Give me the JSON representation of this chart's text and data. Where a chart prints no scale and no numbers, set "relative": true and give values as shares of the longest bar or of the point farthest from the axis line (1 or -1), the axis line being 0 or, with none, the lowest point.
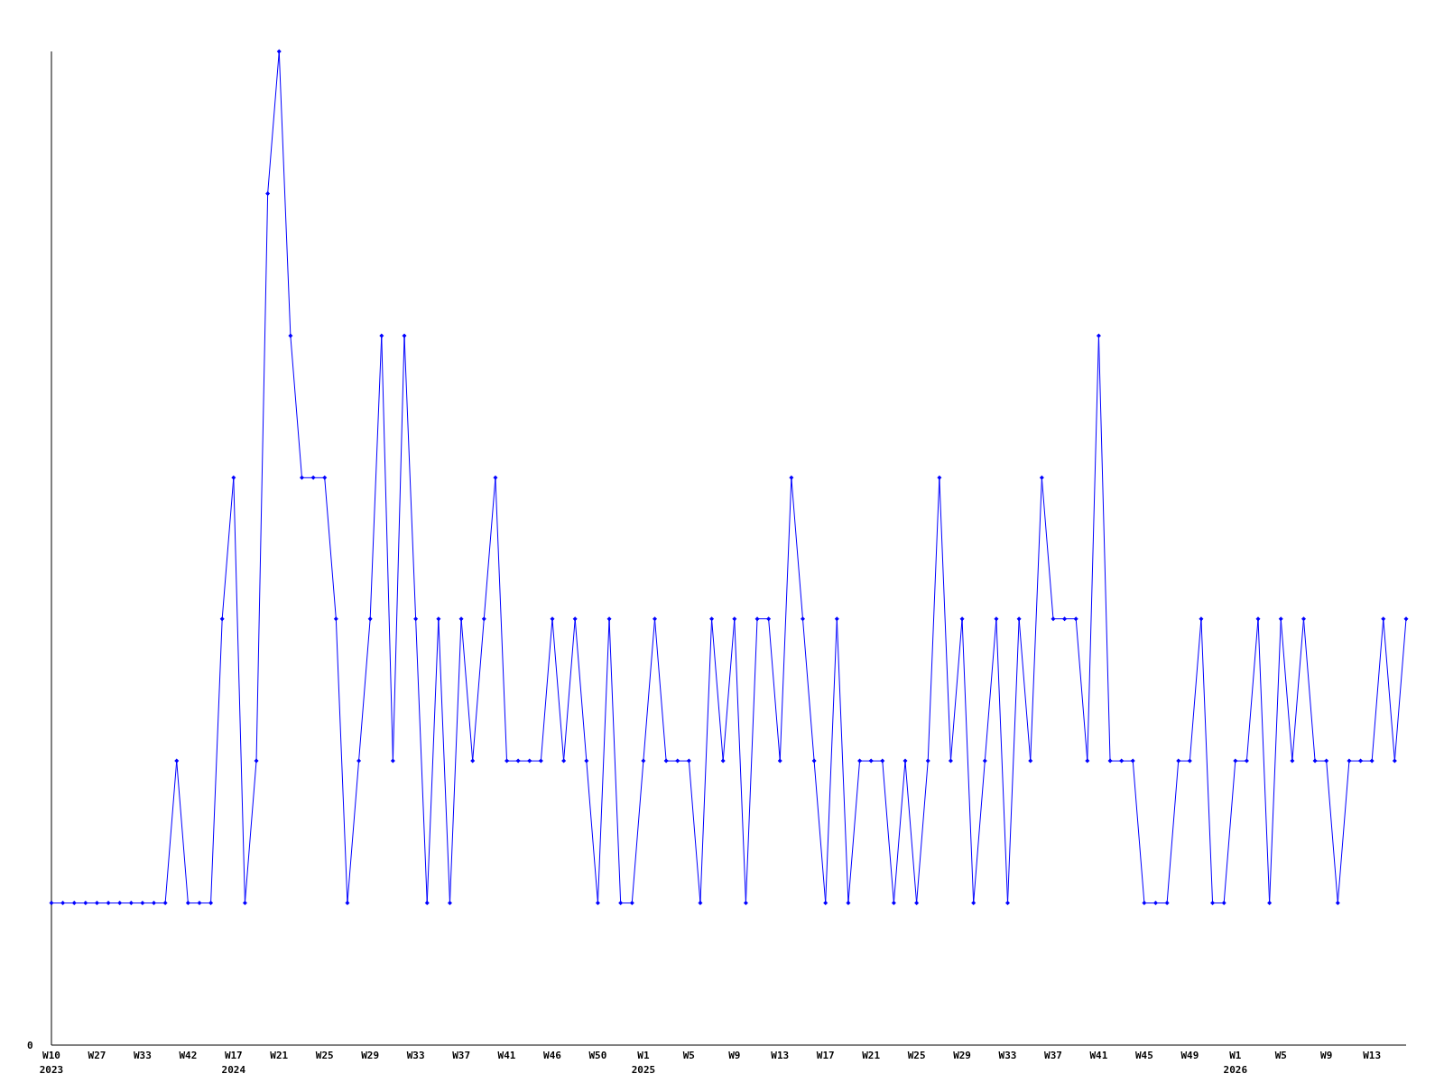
{
  "chart_data": {
    "type": "line",
    "relative": true,
    "marker": "diamond",
    "line_style": "solid",
    "annotations": [
      "0"
    ],
    "categories": [
      "W10\n2023",
      null,
      null,
      null,
      "W27",
      null,
      null,
      null,
      "W33",
      null,
      null,
      null,
      "W42",
      null,
      null,
      null,
      "W17\n2024",
      null,
      null,
      null,
      "W21",
      null,
      null,
      null,
      "W25",
      null,
      null,
      null,
      "W29",
      null,
      null,
      null,
      "W33",
      null,
      null,
      null,
      "W37",
      null,
      null,
      null,
      "W41",
      null,
      null,
      null,
      "W46",
      null,
      null,
      null,
      "W50",
      null,
      null,
      null,
      "W1\n2025",
      null,
      null,
      null,
      "W5",
      null,
      null,
      null,
      "W9",
      null,
      null,
      null,
      "W13",
      null,
      null,
      null,
      "W17",
      null,
      null,
      null,
      "W21",
      null,
      null,
      null,
      "W25",
      null,
      null,
      null,
      "W29",
      null,
      null,
      null,
      "W33",
      null,
      null,
      null,
      "W37",
      null,
      null,
      null,
      "W41",
      null,
      null,
      null,
      "W45",
      null,
      null,
      null,
      "W49",
      null,
      null,
      null,
      "W1\n2026",
      null,
      null,
      null,
      "W5",
      null,
      null,
      null,
      "W9",
      null,
      null,
      null,
      "W13",
      null,
      null,
      null
    ],
    "series": [
      {
        "color": "#0000ff",
        "values": [
          0.143,
          0.143,
          0.143,
          0.143,
          0.143,
          0.143,
          0.143,
          0.143,
          0.143,
          0.143,
          0.143,
          0.286,
          0.143,
          0.143,
          0.143,
          0.429,
          0.571,
          0.143,
          0.286,
          0.857,
          1,
          0.714,
          0.571,
          0.571,
          0.571,
          0.429,
          0.143,
          0.286,
          0.429,
          0.714,
          0.286,
          0.714,
          0.429,
          0.143,
          0.429,
          0.143,
          0.429,
          0.286,
          0.429,
          0.571,
          0.286,
          0.286,
          0.286,
          0.286,
          0.429,
          0.286,
          0.429,
          0.286,
          0.143,
          0.429,
          0.143,
          0.143,
          0.286,
          0.429,
          0.286,
          0.286,
          0.286,
          0.143,
          0.429,
          0.286,
          0.429,
          0.143,
          0.429,
          0.429,
          0.286,
          0.571,
          0.429,
          0.286,
          0.143,
          0.429,
          0.143,
          0.286,
          0.286,
          0.286,
          0.143,
          0.286,
          0.143,
          0.286,
          0.571,
          0.286,
          0.429,
          0.143,
          0.286,
          0.429,
          0.143,
          0.429,
          0.286,
          0.571,
          0.429,
          0.429,
          0.429,
          0.286,
          0.714,
          0.286,
          0.286,
          0.286,
          0.143,
          0.143,
          0.143,
          0.286,
          0.286,
          0.429,
          0.143,
          0.143,
          0.286,
          0.286,
          0.429,
          0.143,
          0.429,
          0.286,
          0.429,
          0.286,
          0.286,
          0.143,
          0.286,
          0.286,
          0.286,
          0.429,
          0.286,
          0.429
        ]
      }
    ]
  }
}
